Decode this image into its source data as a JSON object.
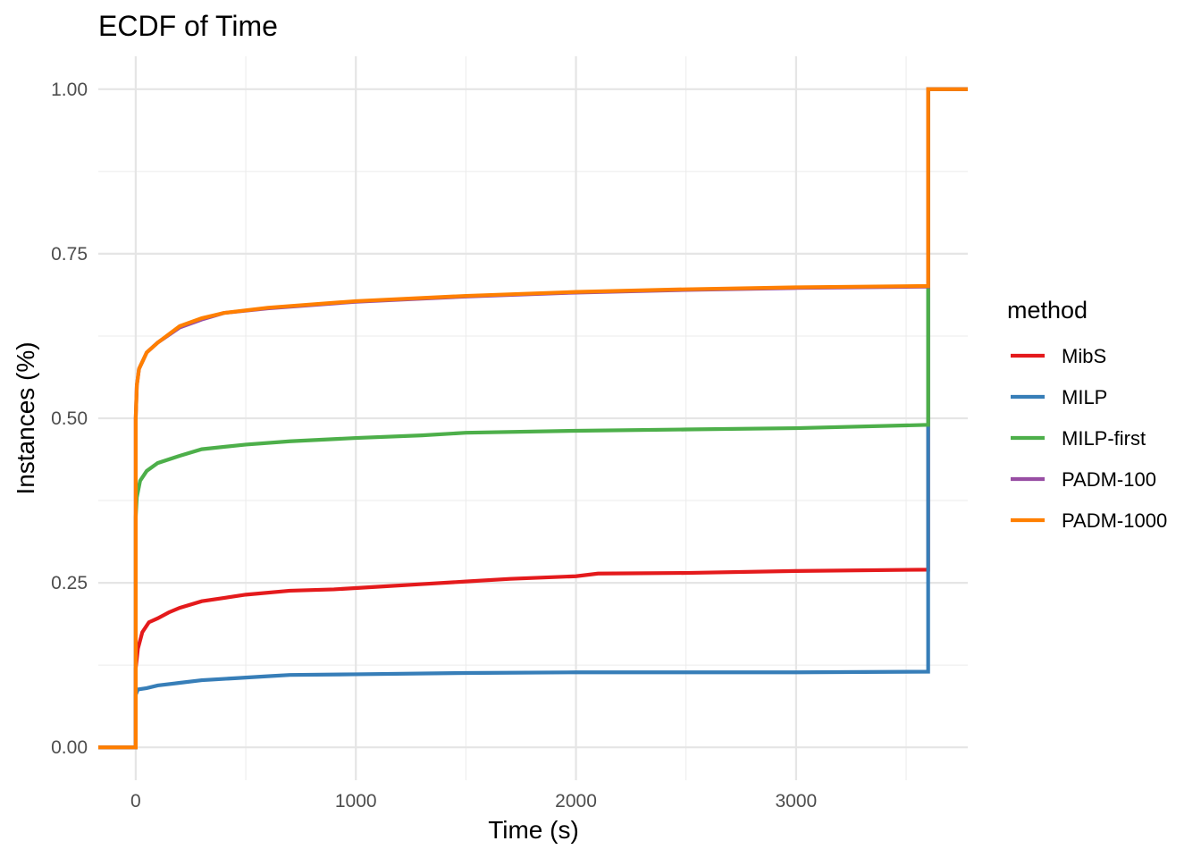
{
  "chart_data": {
    "type": "line",
    "subtype": "ecdf-step",
    "title": "ECDF of Time",
    "xlabel": "Time (s)",
    "ylabel": "Instances (%)",
    "xlim": [
      -170,
      3780
    ],
    "ylim": [
      -0.05,
      1.05
    ],
    "x_ticks": [
      0,
      1000,
      2000,
      3000
    ],
    "x_tick_labels": [
      "0",
      "1000",
      "2000",
      "3000"
    ],
    "y_ticks": [
      0,
      0.25,
      0.5,
      0.75,
      1.0
    ],
    "y_tick_labels": [
      "0.00",
      "0.25",
      "0.50",
      "0.75",
      "1.00"
    ],
    "grid": true,
    "legend": {
      "title": "method",
      "position": "right"
    },
    "series": [
      {
        "name": "MibS",
        "color": "#E41A1C",
        "points": [
          [
            -170,
            0
          ],
          [
            0,
            0
          ],
          [
            0,
            0.12
          ],
          [
            10,
            0.15
          ],
          [
            30,
            0.175
          ],
          [
            60,
            0.19
          ],
          [
            100,
            0.196
          ],
          [
            150,
            0.205
          ],
          [
            200,
            0.212
          ],
          [
            300,
            0.222
          ],
          [
            400,
            0.227
          ],
          [
            500,
            0.232
          ],
          [
            700,
            0.238
          ],
          [
            900,
            0.24
          ],
          [
            1100,
            0.244
          ],
          [
            1300,
            0.248
          ],
          [
            1500,
            0.252
          ],
          [
            1700,
            0.256
          ],
          [
            2000,
            0.26
          ],
          [
            2100,
            0.264
          ],
          [
            2500,
            0.265
          ],
          [
            3000,
            0.268
          ],
          [
            3600,
            0.27
          ],
          [
            3600,
            1.0
          ],
          [
            3780,
            1.0
          ]
        ]
      },
      {
        "name": "MILP",
        "color": "#377EB8",
        "points": [
          [
            -170,
            0
          ],
          [
            0,
            0
          ],
          [
            0,
            0.08
          ],
          [
            10,
            0.088
          ],
          [
            50,
            0.09
          ],
          [
            100,
            0.094
          ],
          [
            200,
            0.098
          ],
          [
            300,
            0.102
          ],
          [
            450,
            0.105
          ],
          [
            600,
            0.108
          ],
          [
            700,
            0.11
          ],
          [
            1000,
            0.111
          ],
          [
            1500,
            0.113
          ],
          [
            2000,
            0.114
          ],
          [
            3000,
            0.114
          ],
          [
            3600,
            0.115
          ],
          [
            3600,
            1.0
          ],
          [
            3780,
            1.0
          ]
        ]
      },
      {
        "name": "MILP-first",
        "color": "#4DAF4A",
        "points": [
          [
            -170,
            0
          ],
          [
            0,
            0
          ],
          [
            0,
            0.35
          ],
          [
            5,
            0.38
          ],
          [
            20,
            0.405
          ],
          [
            50,
            0.42
          ],
          [
            100,
            0.432
          ],
          [
            200,
            0.443
          ],
          [
            300,
            0.453
          ],
          [
            500,
            0.46
          ],
          [
            700,
            0.465
          ],
          [
            1000,
            0.47
          ],
          [
            1300,
            0.474
          ],
          [
            1500,
            0.478
          ],
          [
            2000,
            0.481
          ],
          [
            2500,
            0.483
          ],
          [
            3000,
            0.485
          ],
          [
            3600,
            0.49
          ],
          [
            3600,
            1.0
          ],
          [
            3780,
            1.0
          ]
        ]
      },
      {
        "name": "PADM-100",
        "color": "#984EA3",
        "points": [
          [
            -170,
            0
          ],
          [
            0,
            0
          ],
          [
            0,
            0.5
          ],
          [
            5,
            0.55
          ],
          [
            15,
            0.575
          ],
          [
            50,
            0.6
          ],
          [
            100,
            0.615
          ],
          [
            200,
            0.638
          ],
          [
            300,
            0.65
          ],
          [
            400,
            0.66
          ],
          [
            600,
            0.667
          ],
          [
            1000,
            0.677
          ],
          [
            1500,
            0.685
          ],
          [
            2000,
            0.691
          ],
          [
            2500,
            0.695
          ],
          [
            3000,
            0.698
          ],
          [
            3600,
            0.7
          ],
          [
            3600,
            1.0
          ],
          [
            3780,
            1.0
          ]
        ]
      },
      {
        "name": "PADM-1000",
        "color": "#FF7F00",
        "points": [
          [
            -170,
            0
          ],
          [
            0,
            0
          ],
          [
            0,
            0.5
          ],
          [
            5,
            0.55
          ],
          [
            15,
            0.575
          ],
          [
            50,
            0.6
          ],
          [
            100,
            0.615
          ],
          [
            200,
            0.64
          ],
          [
            300,
            0.652
          ],
          [
            400,
            0.66
          ],
          [
            600,
            0.668
          ],
          [
            1000,
            0.678
          ],
          [
            1500,
            0.686
          ],
          [
            2000,
            0.692
          ],
          [
            2500,
            0.696
          ],
          [
            3000,
            0.699
          ],
          [
            3600,
            0.701
          ],
          [
            3600,
            1.0
          ],
          [
            3780,
            1.0
          ]
        ]
      }
    ]
  }
}
